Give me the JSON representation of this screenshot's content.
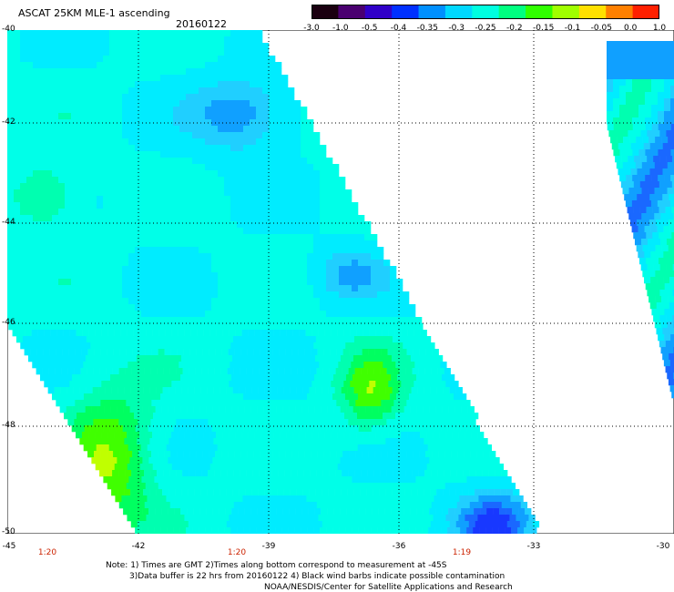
{
  "header": {
    "title": "ASCAT 25KM MLE-1 ascending",
    "date": "20160122"
  },
  "colorbar": {
    "labels": [
      "-3.0",
      "-1.0",
      "-0.5",
      "-0.4",
      "-0.35",
      "-0.3",
      "-0.25",
      "-0.2",
      "-0.15",
      "-0.1",
      "-0.05",
      "0.0",
      "1.0"
    ],
    "colors": [
      "#1a0010",
      "#4a0070",
      "#3000c8",
      "#0030ff",
      "#0090ff",
      "#00d8ff",
      "#00ffe0",
      "#00ff80",
      "#30ff00",
      "#a0ff00",
      "#ffe000",
      "#ff8000",
      "#ff2000"
    ]
  },
  "axes": {
    "lat_labels": [
      "-40",
      "-42",
      "-44",
      "-46",
      "-48",
      "-50"
    ],
    "lon_labels": [
      "-45",
      "-42",
      "-39",
      "-36",
      "-33",
      "-30"
    ],
    "time_labels": [
      "1:20",
      "1:20",
      "1:19"
    ]
  },
  "notes": {
    "line1": "Note: 1) Times are GMT 2)Times along bottom correspond to measurement at -45S",
    "line2": "3)Data buffer is 22 hrs from 20160122 4) Black wind barbs indicate possible contamination",
    "line3": "NOAA/NESDIS/Center for Satellite Applications and Research"
  }
}
